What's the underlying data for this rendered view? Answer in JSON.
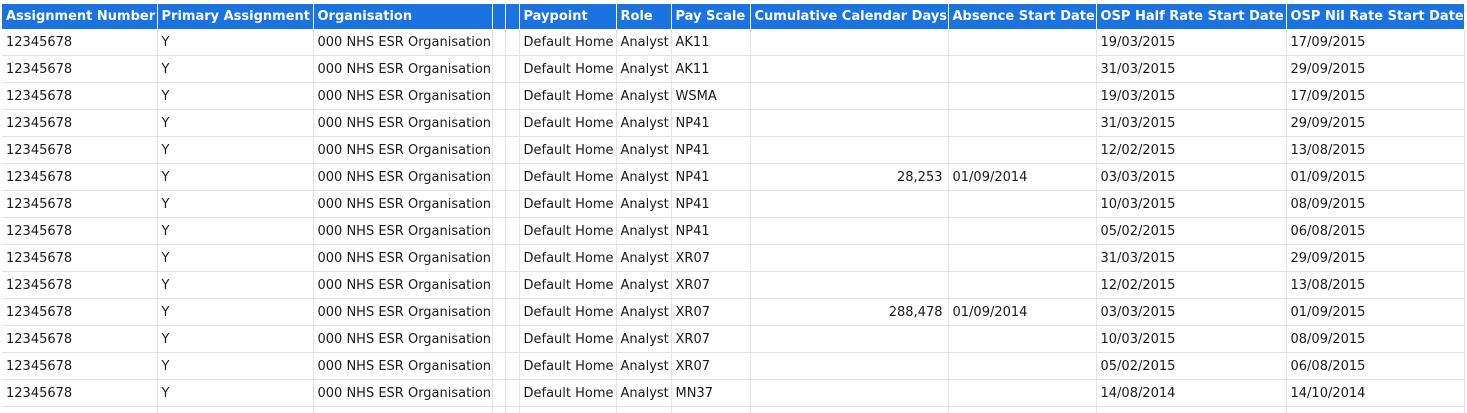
{
  "table": {
    "columns": [
      {
        "key": "assignment_number",
        "label": "Assignment Number",
        "align": "left"
      },
      {
        "key": "primary_assignment",
        "label": "Primary Assignment",
        "align": "left"
      },
      {
        "key": "organisation",
        "label": "Organisation",
        "align": "left"
      },
      {
        "key": "blank1",
        "label": "",
        "align": "left"
      },
      {
        "key": "blank2",
        "label": "",
        "align": "left"
      },
      {
        "key": "paypoint",
        "label": "Paypoint",
        "align": "left"
      },
      {
        "key": "role",
        "label": "Role",
        "align": "left"
      },
      {
        "key": "pay_scale",
        "label": "Pay Scale",
        "align": "left"
      },
      {
        "key": "cumulative_days",
        "label": "Cumulative Calendar Days",
        "align": "right"
      },
      {
        "key": "absence_start",
        "label": "Absence Start Date",
        "align": "left"
      },
      {
        "key": "osp_half",
        "label": "OSP Half Rate Start Date",
        "align": "left"
      },
      {
        "key": "osp_nil",
        "label": "OSP Nil Rate Start Date",
        "align": "left"
      }
    ],
    "rows": [
      [
        "12345678",
        "Y",
        "000 NHS ESR Organisation",
        "",
        "",
        "Default Home",
        "Analyst",
        "AK11",
        "",
        "",
        "19/03/2015",
        "17/09/2015"
      ],
      [
        "12345678",
        "Y",
        "000 NHS ESR Organisation",
        "",
        "",
        "Default Home",
        "Analyst",
        "AK11",
        "",
        "",
        "31/03/2015",
        "29/09/2015"
      ],
      [
        "12345678",
        "Y",
        "000 NHS ESR Organisation",
        "",
        "",
        "Default Home",
        "Analyst",
        "WSMA",
        "",
        "",
        "19/03/2015",
        "17/09/2015"
      ],
      [
        "12345678",
        "Y",
        "000 NHS ESR Organisation",
        "",
        "",
        "Default Home",
        "Analyst",
        "NP41",
        "",
        "",
        "31/03/2015",
        "29/09/2015"
      ],
      [
        "12345678",
        "Y",
        "000 NHS ESR Organisation",
        "",
        "",
        "Default Home",
        "Analyst",
        "NP41",
        "",
        "",
        "12/02/2015",
        "13/08/2015"
      ],
      [
        "12345678",
        "Y",
        "000 NHS ESR Organisation",
        "",
        "",
        "Default Home",
        "Analyst",
        "NP41",
        "28,253",
        "01/09/2014",
        "03/03/2015",
        "01/09/2015"
      ],
      [
        "12345678",
        "Y",
        "000 NHS ESR Organisation",
        "",
        "",
        "Default Home",
        "Analyst",
        "NP41",
        "",
        "",
        "10/03/2015",
        "08/09/2015"
      ],
      [
        "12345678",
        "Y",
        "000 NHS ESR Organisation",
        "",
        "",
        "Default Home",
        "Analyst",
        "NP41",
        "",
        "",
        "05/02/2015",
        "06/08/2015"
      ],
      [
        "12345678",
        "Y",
        "000 NHS ESR Organisation",
        "",
        "",
        "Default Home",
        "Analyst",
        "XR07",
        "",
        "",
        "31/03/2015",
        "29/09/2015"
      ],
      [
        "12345678",
        "Y",
        "000 NHS ESR Organisation",
        "",
        "",
        "Default Home",
        "Analyst",
        "XR07",
        "",
        "",
        "12/02/2015",
        "13/08/2015"
      ],
      [
        "12345678",
        "Y",
        "000 NHS ESR Organisation",
        "",
        "",
        "Default Home",
        "Analyst",
        "XR07",
        "288,478",
        "01/09/2014",
        "03/03/2015",
        "01/09/2015"
      ],
      [
        "12345678",
        "Y",
        "000 NHS ESR Organisation",
        "",
        "",
        "Default Home",
        "Analyst",
        "XR07",
        "",
        "",
        "10/03/2015",
        "08/09/2015"
      ],
      [
        "12345678",
        "Y",
        "000 NHS ESR Organisation",
        "",
        "",
        "Default Home",
        "Analyst",
        "XR07",
        "",
        "",
        "05/02/2015",
        "06/08/2015"
      ],
      [
        "12345678",
        "Y",
        "000 NHS ESR Organisation",
        "",
        "",
        "Default Home",
        "Analyst",
        "MN37",
        "",
        "",
        "14/08/2014",
        "14/10/2014"
      ]
    ],
    "colors": {
      "header_bg": "#1a73e1",
      "header_text": "#ffffff",
      "grid_line": "#e3e3e3"
    }
  }
}
